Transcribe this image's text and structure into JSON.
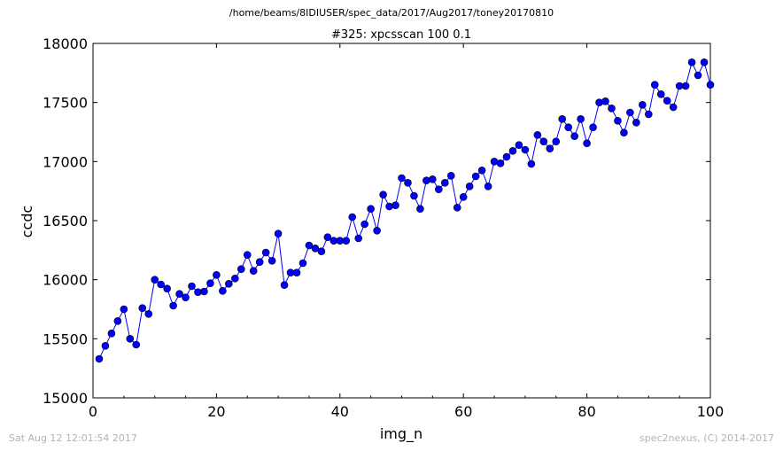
{
  "header": {
    "path": "/home/beams/8IDIUSER/spec_data/2017/Aug2017/toney20170810"
  },
  "footer": {
    "timestamp": "Sat Aug 12 12:01:54 2017",
    "credit": "spec2nexus, (C) 2014-2017"
  },
  "chart_data": {
    "type": "line",
    "title": "#325: xpcsscan 100 0.1",
    "xlabel": "img_n",
    "ylabel": "ccdc",
    "xlim": [
      0,
      100
    ],
    "ylim": [
      15000,
      18000
    ],
    "xticks": [
      0,
      20,
      40,
      60,
      80,
      100
    ],
    "yticks": [
      15000,
      15500,
      16000,
      16500,
      17000,
      17500,
      18000
    ],
    "grid": false,
    "marker": "circle",
    "color": "#0000ff",
    "series": [
      {
        "x": [
          1,
          2,
          3,
          4,
          5,
          6,
          7,
          8,
          9,
          10,
          11,
          12,
          13,
          14,
          15,
          16,
          17,
          18,
          19,
          20,
          21,
          22,
          23,
          24,
          25,
          26,
          27,
          28,
          29,
          30,
          31,
          32,
          33,
          34,
          35,
          36,
          37,
          38,
          39,
          40,
          41,
          42,
          43,
          44,
          45,
          46,
          47,
          48,
          49,
          50,
          51,
          52,
          53,
          54,
          55,
          56,
          57,
          58,
          59,
          60,
          61,
          62,
          63,
          64,
          65,
          66,
          67,
          68,
          69,
          70,
          71,
          72,
          73,
          74,
          75,
          76,
          77,
          78,
          79,
          80,
          81,
          82,
          83,
          84,
          85,
          86,
          87,
          88,
          89,
          90,
          91,
          92,
          93,
          94,
          95,
          96,
          97,
          98,
          99,
          100
        ],
        "y": [
          15330,
          15440,
          15545,
          15650,
          15750,
          15500,
          15450,
          15760,
          15710,
          16000,
          15960,
          15925,
          15780,
          15880,
          15850,
          15945,
          15895,
          15900,
          15970,
          16040,
          15905,
          15965,
          16010,
          16090,
          16210,
          16075,
          16150,
          16230,
          16160,
          16390,
          15955,
          16060,
          16060,
          16140,
          16290,
          16265,
          16240,
          16360,
          16330,
          16330,
          16330,
          16530,
          16350,
          16470,
          16600,
          16415,
          16720,
          16620,
          16630,
          16860,
          16820,
          16710,
          16600,
          16840,
          16850,
          16765,
          16820,
          16880,
          16610,
          16700,
          16790,
          16875,
          16925,
          16790,
          17000,
          16985,
          17040,
          17090,
          17140,
          17100,
          16980,
          17225,
          17170,
          17110,
          17170,
          17360,
          17290,
          17215,
          17360,
          17155,
          17290,
          17500,
          17510,
          17450,
          17345,
          17245,
          17415,
          17330,
          17480,
          17400,
          17650,
          17570,
          17515,
          17460,
          17640,
          17640,
          17840,
          17730,
          17840,
          17650
        ]
      }
    ]
  }
}
